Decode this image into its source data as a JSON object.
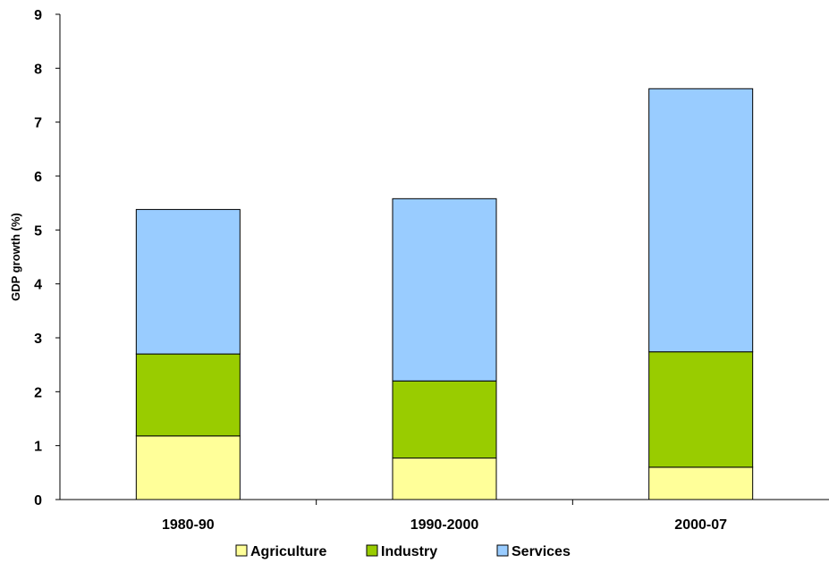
{
  "chart_data": {
    "type": "bar",
    "stacked": true,
    "categories": [
      "1980-90",
      "1990-2000",
      "2000-07"
    ],
    "series": [
      {
        "name": "Agriculture",
        "values": [
          1.18,
          0.77,
          0.6
        ],
        "color": "#ffff99"
      },
      {
        "name": "Industry",
        "values": [
          1.52,
          1.43,
          2.14
        ],
        "color": "#99cc00"
      },
      {
        "name": "Services",
        "values": [
          2.68,
          3.38,
          4.88
        ],
        "color": "#99ccff"
      }
    ],
    "title": "",
    "xlabel": "",
    "ylabel": "GDP growth (%)",
    "ylim": [
      0,
      9
    ],
    "yticks": [
      0,
      1,
      2,
      3,
      4,
      5,
      6,
      7,
      8,
      9
    ],
    "grid": false,
    "legend_position": "bottom"
  }
}
